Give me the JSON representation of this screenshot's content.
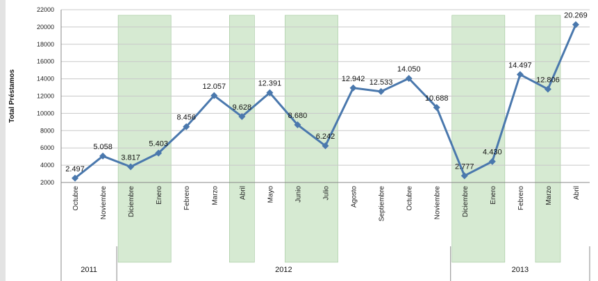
{
  "chart_data": {
    "type": "line",
    "ylabel": "Total Préstamos",
    "ylim": [
      2000,
      22000
    ],
    "yticks": [
      2000,
      4000,
      6000,
      8000,
      10000,
      12000,
      14000,
      16000,
      18000,
      20000,
      22000
    ],
    "grid": true,
    "categories": [
      "Octubre",
      "Noviembre",
      "Diciembre",
      "Enero",
      "Febrero",
      "Marzo",
      "Abril",
      "Mayo",
      "Junio",
      "Julio",
      "Agosto",
      "Septiembre",
      "Octubre",
      "Noviembre",
      "Diciembre",
      "Enero",
      "Febrero",
      "Marzo",
      "Abril"
    ],
    "values": [
      2497,
      5058,
      3817,
      5403,
      8456,
      12057,
      9628,
      12391,
      8680,
      6242,
      12942,
      12533,
      14050,
      10688,
      2777,
      4430,
      14497,
      12806,
      20269
    ],
    "value_labels": [
      "2.497",
      "5.058",
      "3.817",
      "5.403",
      "8.456",
      "12.057",
      "9.628",
      "12.391",
      "8.680",
      "6.242",
      "12.942",
      "12.533",
      "14.050",
      "10.688",
      "2.777",
      "4.430",
      "14.497",
      "12.806",
      "20.269"
    ],
    "years": [
      {
        "label": "2011",
        "from": 0,
        "to": 1
      },
      {
        "label": "2012",
        "from": 2,
        "to": 13
      },
      {
        "label": "2013",
        "from": 14,
        "to": 18
      }
    ],
    "shaded_periods": [
      [
        2,
        3
      ],
      [
        6,
        6
      ],
      [
        8,
        9
      ],
      [
        14,
        15
      ],
      [
        17,
        17
      ]
    ],
    "colors": {
      "line": "#4a78ad",
      "shade": "#d6ead2",
      "grid": "#c8c8c8"
    }
  }
}
